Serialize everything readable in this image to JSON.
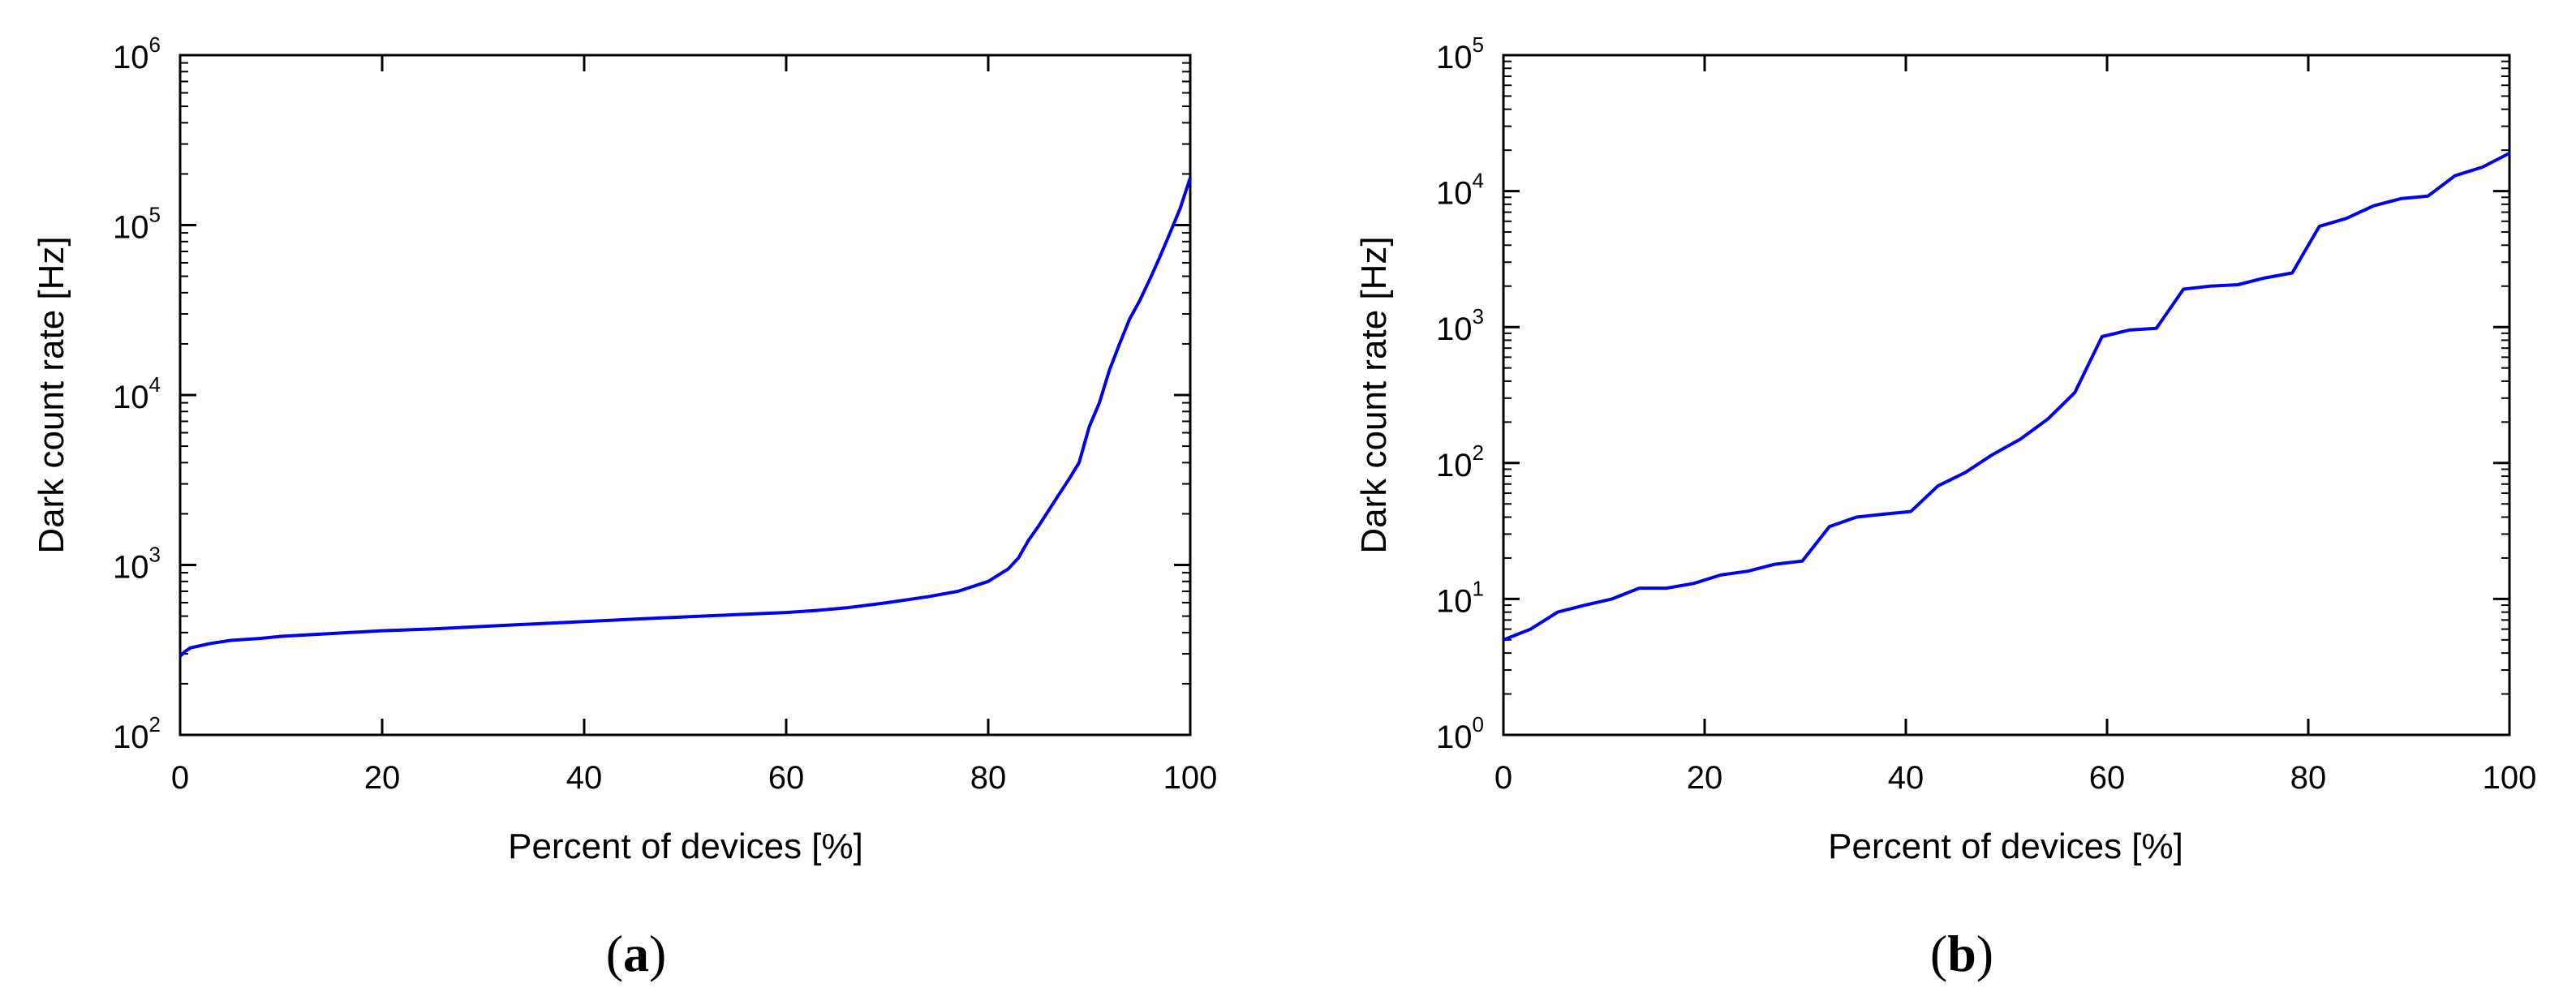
{
  "chart_data": [
    {
      "type": "line",
      "panel_label": "a",
      "xlabel": "Percent of devices [%]",
      "ylabel": "Dark count rate [Hz]",
      "xlim": [
        0,
        100
      ],
      "ylim": [
        100,
        1000000
      ],
      "yscale": "log",
      "grid": false,
      "x_ticks": [
        "0",
        "20",
        "40",
        "60",
        "80",
        "100"
      ],
      "y_ticks": [
        {
          "base": "10",
          "exp": "2",
          "value": 100
        },
        {
          "base": "10",
          "exp": "3",
          "value": 1000
        },
        {
          "base": "10",
          "exp": "4",
          "value": 10000
        },
        {
          "base": "10",
          "exp": "5",
          "value": 100000
        },
        {
          "base": "10",
          "exp": "6",
          "value": 1000000
        }
      ],
      "line_color": "#0000ee",
      "series": [
        {
          "x": [
            0,
            0.5,
            1,
            2,
            3,
            5,
            8,
            10,
            15,
            20,
            25,
            30,
            35,
            40,
            45,
            50,
            55,
            60,
            63,
            66,
            70,
            74,
            77,
            80,
            82,
            83,
            84,
            85,
            86,
            87,
            88,
            89,
            90,
            91,
            92,
            93,
            94,
            95,
            96,
            97,
            98,
            99,
            100
          ],
          "y": [
            290,
            310,
            325,
            335,
            345,
            360,
            370,
            380,
            395,
            410,
            420,
            435,
            450,
            465,
            480,
            495,
            510,
            525,
            540,
            560,
            600,
            650,
            700,
            800,
            950,
            1100,
            1400,
            1700,
            2100,
            2600,
            3200,
            4000,
            6500,
            9000,
            14000,
            20000,
            28000,
            36000,
            48000,
            65000,
            90000,
            125000,
            190000
          ]
        }
      ]
    },
    {
      "type": "line",
      "panel_label": "b",
      "xlabel": "Percent of devices [%]",
      "ylabel": "Dark count rate [Hz]",
      "xlim": [
        0,
        100
      ],
      "ylim": [
        1,
        100000
      ],
      "yscale": "log",
      "grid": false,
      "x_ticks": [
        "0",
        "20",
        "40",
        "60",
        "80",
        "100"
      ],
      "y_ticks": [
        {
          "base": "10",
          "exp": "0",
          "value": 1
        },
        {
          "base": "10",
          "exp": "1",
          "value": 10
        },
        {
          "base": "10",
          "exp": "2",
          "value": 100
        },
        {
          "base": "10",
          "exp": "3",
          "value": 1000
        },
        {
          "base": "10",
          "exp": "4",
          "value": 10000
        },
        {
          "base": "10",
          "exp": "5",
          "value": 100000
        }
      ],
      "line_color": "#0000ee",
      "series": [
        {
          "x": [
            0,
            2.7,
            5.4,
            8.1,
            10.8,
            13.5,
            16.2,
            18.9,
            21.6,
            24.3,
            27,
            29.7,
            32.4,
            35.1,
            37.8,
            40.5,
            43.2,
            45.9,
            48.6,
            51.4,
            54.1,
            56.8,
            59.5,
            62.2,
            64.9,
            67.6,
            70.3,
            73,
            75.7,
            78.4,
            81.1,
            83.8,
            86.5,
            89.2,
            91.9,
            94.6,
            97.3,
            100
          ],
          "y": [
            5,
            6,
            8,
            9,
            10,
            12,
            12,
            13,
            15,
            16,
            18,
            19,
            34,
            40,
            42,
            44,
            68,
            85,
            115,
            150,
            210,
            330,
            850,
            950,
            980,
            1900,
            2000,
            2050,
            2300,
            2500,
            5500,
            6300,
            7800,
            8800,
            9200,
            13000,
            15000,
            19000
          ]
        }
      ]
    }
  ]
}
